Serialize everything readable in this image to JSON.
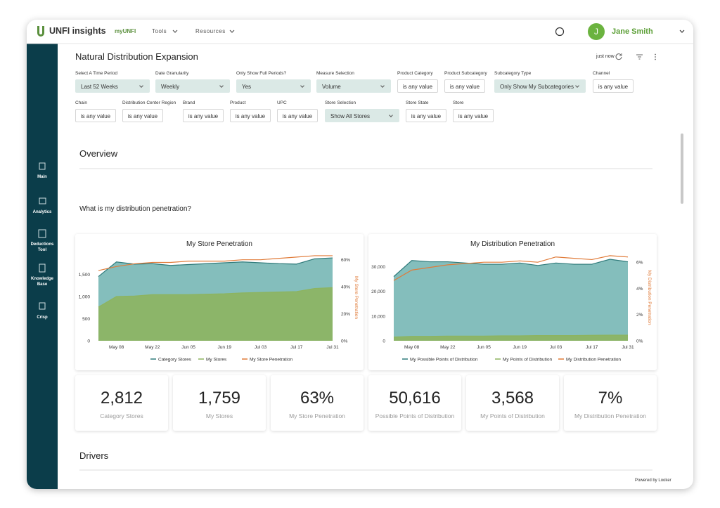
{
  "nav": {
    "logo": "UNFI insights",
    "links": [
      "myUNFI",
      "Tools",
      "Resources"
    ],
    "user_initial": "J",
    "user_name": "Jane Smith"
  },
  "sidebar": [
    "Main",
    "Analytics",
    "Deductions Tool",
    "Knowledge Base",
    "Crisp"
  ],
  "dashboard": {
    "title": "Natural Distribution Expansion",
    "updated": "just now"
  },
  "filters": [
    {
      "label": "Select A Time Period",
      "value": "Last 52 Weeks"
    },
    {
      "label": "Date Granularity",
      "value": "Weekly"
    },
    {
      "label": "Only Show Full Periods?",
      "value": "Yes"
    },
    {
      "label": "Measure Selection",
      "value": "Volume"
    },
    {
      "label": "Product Category",
      "value": "is any value"
    },
    {
      "label": "Product Subcategory",
      "value": "is any value"
    },
    {
      "label": "Subcategory Type",
      "value": "Only Show My Subcategories"
    },
    {
      "label": "Channel",
      "value": "is any value"
    },
    {
      "label": "Chain",
      "value": "is any value"
    },
    {
      "label": "Distribution Center Region",
      "value": "is any value"
    },
    {
      "label": "Brand",
      "value": "is any value"
    },
    {
      "label": "Product",
      "value": "is any value"
    },
    {
      "label": "UPC",
      "value": "is any value"
    },
    {
      "label": "Store Selection",
      "value": "Show All Stores"
    },
    {
      "label": "Store State",
      "value": "is any value"
    },
    {
      "label": "Store",
      "value": "is any value"
    }
  ],
  "sections": {
    "overview": "Overview",
    "question": "What is my distribution penetration?",
    "drivers": "Drivers"
  },
  "chart_data": [
    {
      "type": "area",
      "title": "My Store Penetration",
      "categories": [
        null,
        "May 08",
        null,
        "May 22",
        null,
        "Jun 05",
        null,
        "Jun 19",
        null,
        "Jul 03",
        null,
        "Jul 17",
        null,
        "Jul 31"
      ],
      "ylim": [
        0,
        1950
      ],
      "yticks": [
        0,
        500,
        {
          "value": 1000,
          "label": "1,000"
        },
        {
          "value": 1500,
          "label": "1,500"
        }
      ],
      "y2label": "My Store Penetration",
      "y2lim": [
        0,
        64
      ],
      "y2ticks": [
        {
          "value": 0,
          "label": "0%"
        },
        {
          "value": 20,
          "label": "20%"
        },
        {
          "value": 40,
          "label": "40%"
        },
        {
          "value": 60,
          "label": "60%"
        }
      ],
      "series": [
        {
          "name": "Category Stores",
          "color": "#5ba8a6",
          "values": [
            1450,
            1780,
            1730,
            1740,
            1700,
            1720,
            1740,
            1760,
            1780,
            1760,
            1740,
            1730,
            1850,
            1870
          ]
        },
        {
          "name": "My Stores",
          "color": "#8db45f",
          "values": [
            760,
            1000,
            1010,
            1040,
            1040,
            1040,
            1050,
            1060,
            1080,
            1090,
            1100,
            1110,
            1180,
            1200
          ]
        },
        {
          "name": "My Store Penetration",
          "color": "#e07b39",
          "axis": "y2",
          "values": [
            52,
            55,
            57,
            58,
            58,
            59,
            59,
            59,
            60,
            60,
            61,
            62,
            63,
            63
          ]
        }
      ]
    },
    {
      "type": "area",
      "title": "My Distribution Penetration",
      "categories": [
        null,
        "May 08",
        null,
        "May 22",
        null,
        "Jun 05",
        null,
        "Jun 19",
        null,
        "Jul 03",
        null,
        "Jul 17",
        null,
        "Jul 31"
      ],
      "ylim": [
        0,
        35000
      ],
      "yticks": [
        0,
        {
          "value": 10000,
          "label": "10,000"
        },
        {
          "value": 20000,
          "label": "20,000"
        },
        {
          "value": 30000,
          "label": "30,000"
        }
      ],
      "y2label": "My Distribution Penetration",
      "y2lim": [
        0,
        6.6
      ],
      "y2ticks": [
        {
          "value": 0,
          "label": "0%"
        },
        {
          "value": 2,
          "label": "2%"
        },
        {
          "value": 4,
          "label": "4%"
        },
        {
          "value": 6,
          "label": "6%"
        }
      ],
      "series": [
        {
          "name": "My Possible Points of Distribution",
          "color": "#5ba8a6",
          "values": [
            26000,
            32500,
            32000,
            32000,
            31500,
            31000,
            31000,
            31500,
            30500,
            31500,
            31000,
            31000,
            33000,
            32000
          ]
        },
        {
          "name": "My Points of Distribution",
          "color": "#8db45f",
          "values": [
            1500,
            1800,
            1800,
            1900,
            1900,
            1900,
            2000,
            2000,
            2100,
            2100,
            2100,
            2200,
            2300,
            2300
          ]
        },
        {
          "name": "My Distribution Penetration",
          "color": "#e07b39",
          "axis": "y2",
          "values": [
            4.6,
            5.4,
            5.6,
            5.8,
            5.9,
            6.0,
            6.0,
            6.1,
            6.0,
            6.4,
            6.3,
            6.2,
            6.5,
            6.4
          ]
        }
      ]
    }
  ],
  "kpis": [
    {
      "value": "2,812",
      "label": "Category Stores"
    },
    {
      "value": "1,759",
      "label": "My Stores"
    },
    {
      "value": "63%",
      "label": "My Store Penetration"
    },
    {
      "value": "50,616",
      "label": "Possible Points of Distribution"
    },
    {
      "value": "3,568",
      "label": "My Points of Distribution"
    },
    {
      "value": "7%",
      "label": "My Distribution Penetration"
    }
  ],
  "footer": "Powered by Looker"
}
